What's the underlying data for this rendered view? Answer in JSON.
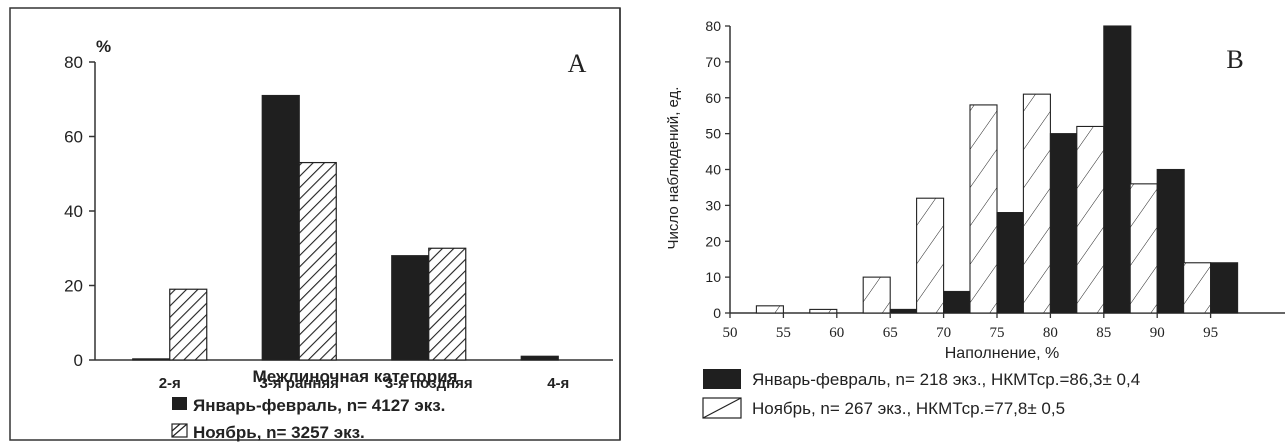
{
  "chart_data": [
    {
      "type": "bar",
      "panel_label": "A",
      "ylabel_unit": "%",
      "xlabel": "Межлиночная категория",
      "categories": [
        "2-я",
        "3-я ранняя",
        "3-я поздняя",
        "4-я"
      ],
      "yticks": [
        "0",
        "20",
        "40",
        "60",
        "80"
      ],
      "ylim": [
        0,
        80
      ],
      "series": [
        {
          "name": "Январь-февраль, n= 4127 экз.",
          "values": [
            0.3,
            71,
            28,
            1
          ]
        },
        {
          "name": "Ноябрь, n= 3257 экз.",
          "values": [
            19,
            53,
            30,
            0
          ]
        }
      ],
      "legend_position": "bottom",
      "grid": false
    },
    {
      "type": "bar",
      "panel_label": "B",
      "ylabel": "Число наблюдений, ед.",
      "xlabel": "Наполнение, %",
      "categories": [
        "55",
        "60",
        "65",
        "70",
        "75",
        "80",
        "85",
        "90",
        "95"
      ],
      "xticks": [
        "50",
        "55",
        "60",
        "65",
        "70",
        "75",
        "80",
        "85",
        "90",
        "95"
      ],
      "yticks": [
        "0",
        "10",
        "20",
        "30",
        "40",
        "50",
        "60",
        "70",
        "80"
      ],
      "ylim": [
        0,
        80
      ],
      "series": [
        {
          "name": "Январь-февраль, n= 218 экз., НКМТср.=86,3± 0,4",
          "values": [
            0,
            0,
            1,
            6,
            28,
            50,
            80,
            40,
            14
          ]
        },
        {
          "name": "Ноябрь, n= 267 экз., НКМТср.=77,8± 0,5",
          "values": [
            2,
            1,
            10,
            32,
            58,
            61,
            52,
            36,
            14
          ]
        }
      ],
      "legend_position": "bottom",
      "grid": false
    }
  ]
}
